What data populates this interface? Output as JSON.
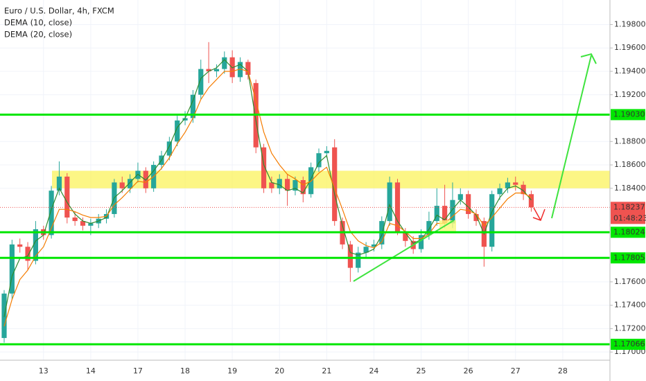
{
  "chart_data": {
    "type": "candlestick",
    "title": "Euro / U.S. Dollar, 4h, FXCM",
    "categories": [
      null,
      null,
      null,
      null,
      null,
      "13",
      null,
      null,
      null,
      null,
      null,
      "14",
      null,
      null,
      null,
      null,
      null,
      "17",
      null,
      null,
      null,
      null,
      null,
      "18",
      null,
      null,
      null,
      null,
      null,
      "19",
      null,
      null,
      null,
      null,
      null,
      "20",
      null,
      null,
      null,
      null,
      null,
      "21",
      null,
      null,
      null,
      null,
      null,
      "24",
      null,
      null,
      null,
      null,
      null,
      "25",
      null,
      null,
      null,
      null,
      null,
      "26",
      null,
      null,
      null,
      null,
      null,
      "27",
      null,
      null,
      null,
      null,
      null,
      "28",
      null,
      null,
      null,
      null
    ],
    "open": [
      1.1712,
      1.175,
      1.1792,
      1.179,
      1.1778,
      1.1805,
      1.18,
      1.1838,
      1.185,
      1.1815,
      1.1812,
      1.1808,
      1.181,
      1.1814,
      1.1818,
      1.1845,
      1.184,
      1.1848,
      1.1855,
      1.184,
      1.186,
      1.1868,
      1.188,
      1.1898,
      1.19,
      1.192,
      1.1942,
      1.194,
      1.1942,
      1.1952,
      1.1935,
      1.1948,
      1.193,
      1.1875,
      1.1845,
      1.184,
      1.1848,
      1.1838,
      1.1847,
      1.1835,
      1.1858,
      1.187,
      1.1875,
      1.1812,
      1.1792,
      1.1772,
      1.1785,
      1.179,
      1.1792,
      1.1812,
      1.1845,
      1.1803,
      1.1795,
      1.1788,
      1.18,
      1.1812,
      1.1825,
      1.181,
      1.183,
      1.1835,
      1.1818,
      1.1812,
      1.179,
      1.1835,
      1.184,
      1.1845,
      1.1843,
      1.1835,
      null,
      null,
      null,
      null,
      null,
      null,
      null,
      null
    ],
    "high": [
      1.1753,
      1.1796,
      1.1797,
      1.1794,
      1.1812,
      1.1808,
      1.1842,
      1.1863,
      1.1853,
      1.182,
      1.1815,
      1.1814,
      1.1818,
      1.1822,
      1.1848,
      1.185,
      1.1852,
      1.1862,
      1.1858,
      1.1863,
      1.1872,
      1.1884,
      1.1902,
      1.1906,
      1.1924,
      1.195,
      1.1965,
      1.1946,
      1.1957,
      1.1958,
      1.1952,
      1.195,
      1.1933,
      1.1878,
      1.185,
      1.1852,
      1.1852,
      1.185,
      1.185,
      1.1862,
      1.1874,
      1.1876,
      1.1882,
      1.1815,
      1.1795,
      1.179,
      1.1794,
      1.1796,
      1.1816,
      1.185,
      1.1848,
      1.1806,
      1.1799,
      1.1805,
      1.182,
      1.184,
      1.1843,
      1.1845,
      1.184,
      1.1838,
      1.1822,
      1.1815,
      1.1838,
      1.1844,
      1.1849,
      1.185,
      1.1846,
      1.1838,
      null,
      null,
      null,
      null,
      null,
      null,
      null,
      null
    ],
    "low": [
      1.1708,
      1.1745,
      1.1785,
      1.177,
      1.1775,
      1.1796,
      1.1797,
      1.1834,
      1.181,
      1.1808,
      1.1804,
      1.18,
      1.1806,
      1.181,
      1.1815,
      1.1836,
      1.1836,
      1.1845,
      1.1836,
      1.1837,
      1.1856,
      1.1864,
      1.1876,
      1.1894,
      1.1896,
      1.1916,
      1.193,
      1.1935,
      1.1938,
      1.193,
      1.1931,
      1.1933,
      1.187,
      1.1836,
      1.1836,
      1.1835,
      1.1825,
      1.1834,
      1.1828,
      1.1832,
      1.1854,
      1.1866,
      1.1808,
      1.1788,
      1.176,
      1.1768,
      1.178,
      1.1786,
      1.1788,
      1.1808,
      1.18,
      1.179,
      1.1784,
      1.1785,
      1.1796,
      1.1808,
      1.1806,
      1.1806,
      1.1826,
      1.1814,
      1.1808,
      1.1773,
      1.1786,
      1.183,
      1.1836,
      1.1838,
      1.183,
      1.182,
      null,
      null,
      null,
      null,
      null,
      null,
      null,
      null
    ],
    "close": [
      1.175,
      1.1792,
      1.179,
      1.1778,
      1.1805,
      1.18,
      1.1838,
      1.185,
      1.1815,
      1.1812,
      1.1808,
      1.181,
      1.1814,
      1.1818,
      1.1845,
      1.184,
      1.1848,
      1.1855,
      1.184,
      1.186,
      1.1868,
      1.188,
      1.1898,
      1.19,
      1.192,
      1.1942,
      1.194,
      1.1942,
      1.1952,
      1.1935,
      1.1948,
      1.1937,
      1.1875,
      1.184,
      1.184,
      1.1848,
      1.1838,
      1.1847,
      1.1835,
      1.1858,
      1.187,
      1.1872,
      1.1812,
      1.1792,
      1.1772,
      1.1785,
      1.179,
      1.1792,
      1.1812,
      1.1845,
      1.1803,
      1.1795,
      1.1788,
      1.18,
      1.1812,
      1.1825,
      1.181,
      1.183,
      1.1835,
      1.1818,
      1.1812,
      1.179,
      1.1835,
      1.184,
      1.1845,
      1.1843,
      1.1835,
      1.18237,
      null,
      null,
      null,
      null,
      null,
      null,
      null,
      null
    ],
    "up_color": "#26a69a",
    "down_color": "#ef5350",
    "series": [
      {
        "name": "DEMA (10, close)",
        "color": "#2e8b2e",
        "values": [
          1.173,
          1.1765,
          1.178,
          1.1782,
          1.1795,
          1.18,
          1.1822,
          1.184,
          1.1828,
          1.1818,
          1.1812,
          1.181,
          1.1812,
          1.1815,
          1.1832,
          1.1838,
          1.1845,
          1.1852,
          1.1847,
          1.1855,
          1.1864,
          1.1876,
          1.1892,
          1.19,
          1.1915,
          1.1934,
          1.194,
          1.1943,
          1.195,
          1.1943,
          1.1946,
          1.194,
          1.1898,
          1.186,
          1.1845,
          1.1843,
          1.1838,
          1.184,
          1.1836,
          1.1848,
          1.1862,
          1.1868,
          1.1835,
          1.1808,
          1.1785,
          1.1783,
          1.1785,
          1.1788,
          1.18,
          1.1826,
          1.1812,
          1.1802,
          1.1793,
          1.1796,
          1.1805,
          1.1817,
          1.1813,
          1.1822,
          1.183,
          1.1824,
          1.1817,
          1.1801,
          1.182,
          1.1832,
          1.184,
          1.1842,
          1.1838,
          1.183,
          null,
          null,
          null,
          null,
          null,
          null,
          null,
          null
        ]
      },
      {
        "name": "DEMA (20, close)",
        "color": "#f57c00",
        "values": [
          1.1722,
          1.1745,
          1.1762,
          1.177,
          1.1782,
          1.179,
          1.1806,
          1.1822,
          1.1822,
          1.182,
          1.1817,
          1.1815,
          1.1815,
          1.1816,
          1.1826,
          1.1832,
          1.1839,
          1.1846,
          1.1845,
          1.185,
          1.1857,
          1.1866,
          1.1878,
          1.1888,
          1.19,
          1.1916,
          1.1926,
          1.1933,
          1.194,
          1.194,
          1.1942,
          1.194,
          1.1915,
          1.1888,
          1.187,
          1.186,
          1.1852,
          1.1848,
          1.1843,
          1.1846,
          1.1853,
          1.1858,
          1.184,
          1.1822,
          1.1803,
          1.1795,
          1.1791,
          1.1789,
          1.1794,
          1.181,
          1.1808,
          1.1803,
          1.1797,
          1.1797,
          1.1801,
          1.181,
          1.181,
          1.1816,
          1.1822,
          1.1821,
          1.1818,
          1.1808,
          1.1815,
          1.1823,
          1.1831,
          1.1836,
          1.1836,
          1.1832,
          null,
          null,
          null,
          null,
          null,
          null,
          null,
          null
        ]
      }
    ],
    "ylim": [
      1.1693,
      1.2001
    ],
    "yticks": [
      {
        "value": 1.198,
        "label": "1.19800"
      },
      {
        "value": 1.196,
        "label": "1.19600"
      },
      {
        "value": 1.194,
        "label": "1.19400"
      },
      {
        "value": 1.192,
        "label": "1.19200"
      },
      {
        "value": 1.188,
        "label": "1.18800"
      },
      {
        "value": 1.186,
        "label": "1.18600"
      },
      {
        "value": 1.184,
        "label": "1.18400"
      },
      {
        "value": 1.176,
        "label": "1.17600"
      },
      {
        "value": 1.174,
        "label": "1.17400"
      },
      {
        "value": 1.172,
        "label": "1.17200"
      },
      {
        "value": 1.17,
        "label": "1.17000"
      }
    ],
    "levels": [
      {
        "value": 1.1903,
        "label": "1.19030"
      },
      {
        "value": 1.18024,
        "label": "1.18024"
      },
      {
        "value": 1.17805,
        "label": "1.17805"
      },
      {
        "value": 1.17066,
        "label": "1.17066"
      }
    ],
    "level_color": "#00e600",
    "zone": [
      1.184,
      1.1855
    ],
    "last_price": {
      "value": 1.18237,
      "label": "1.18237"
    },
    "countdown": "01:48:23",
    "grid": true
  }
}
